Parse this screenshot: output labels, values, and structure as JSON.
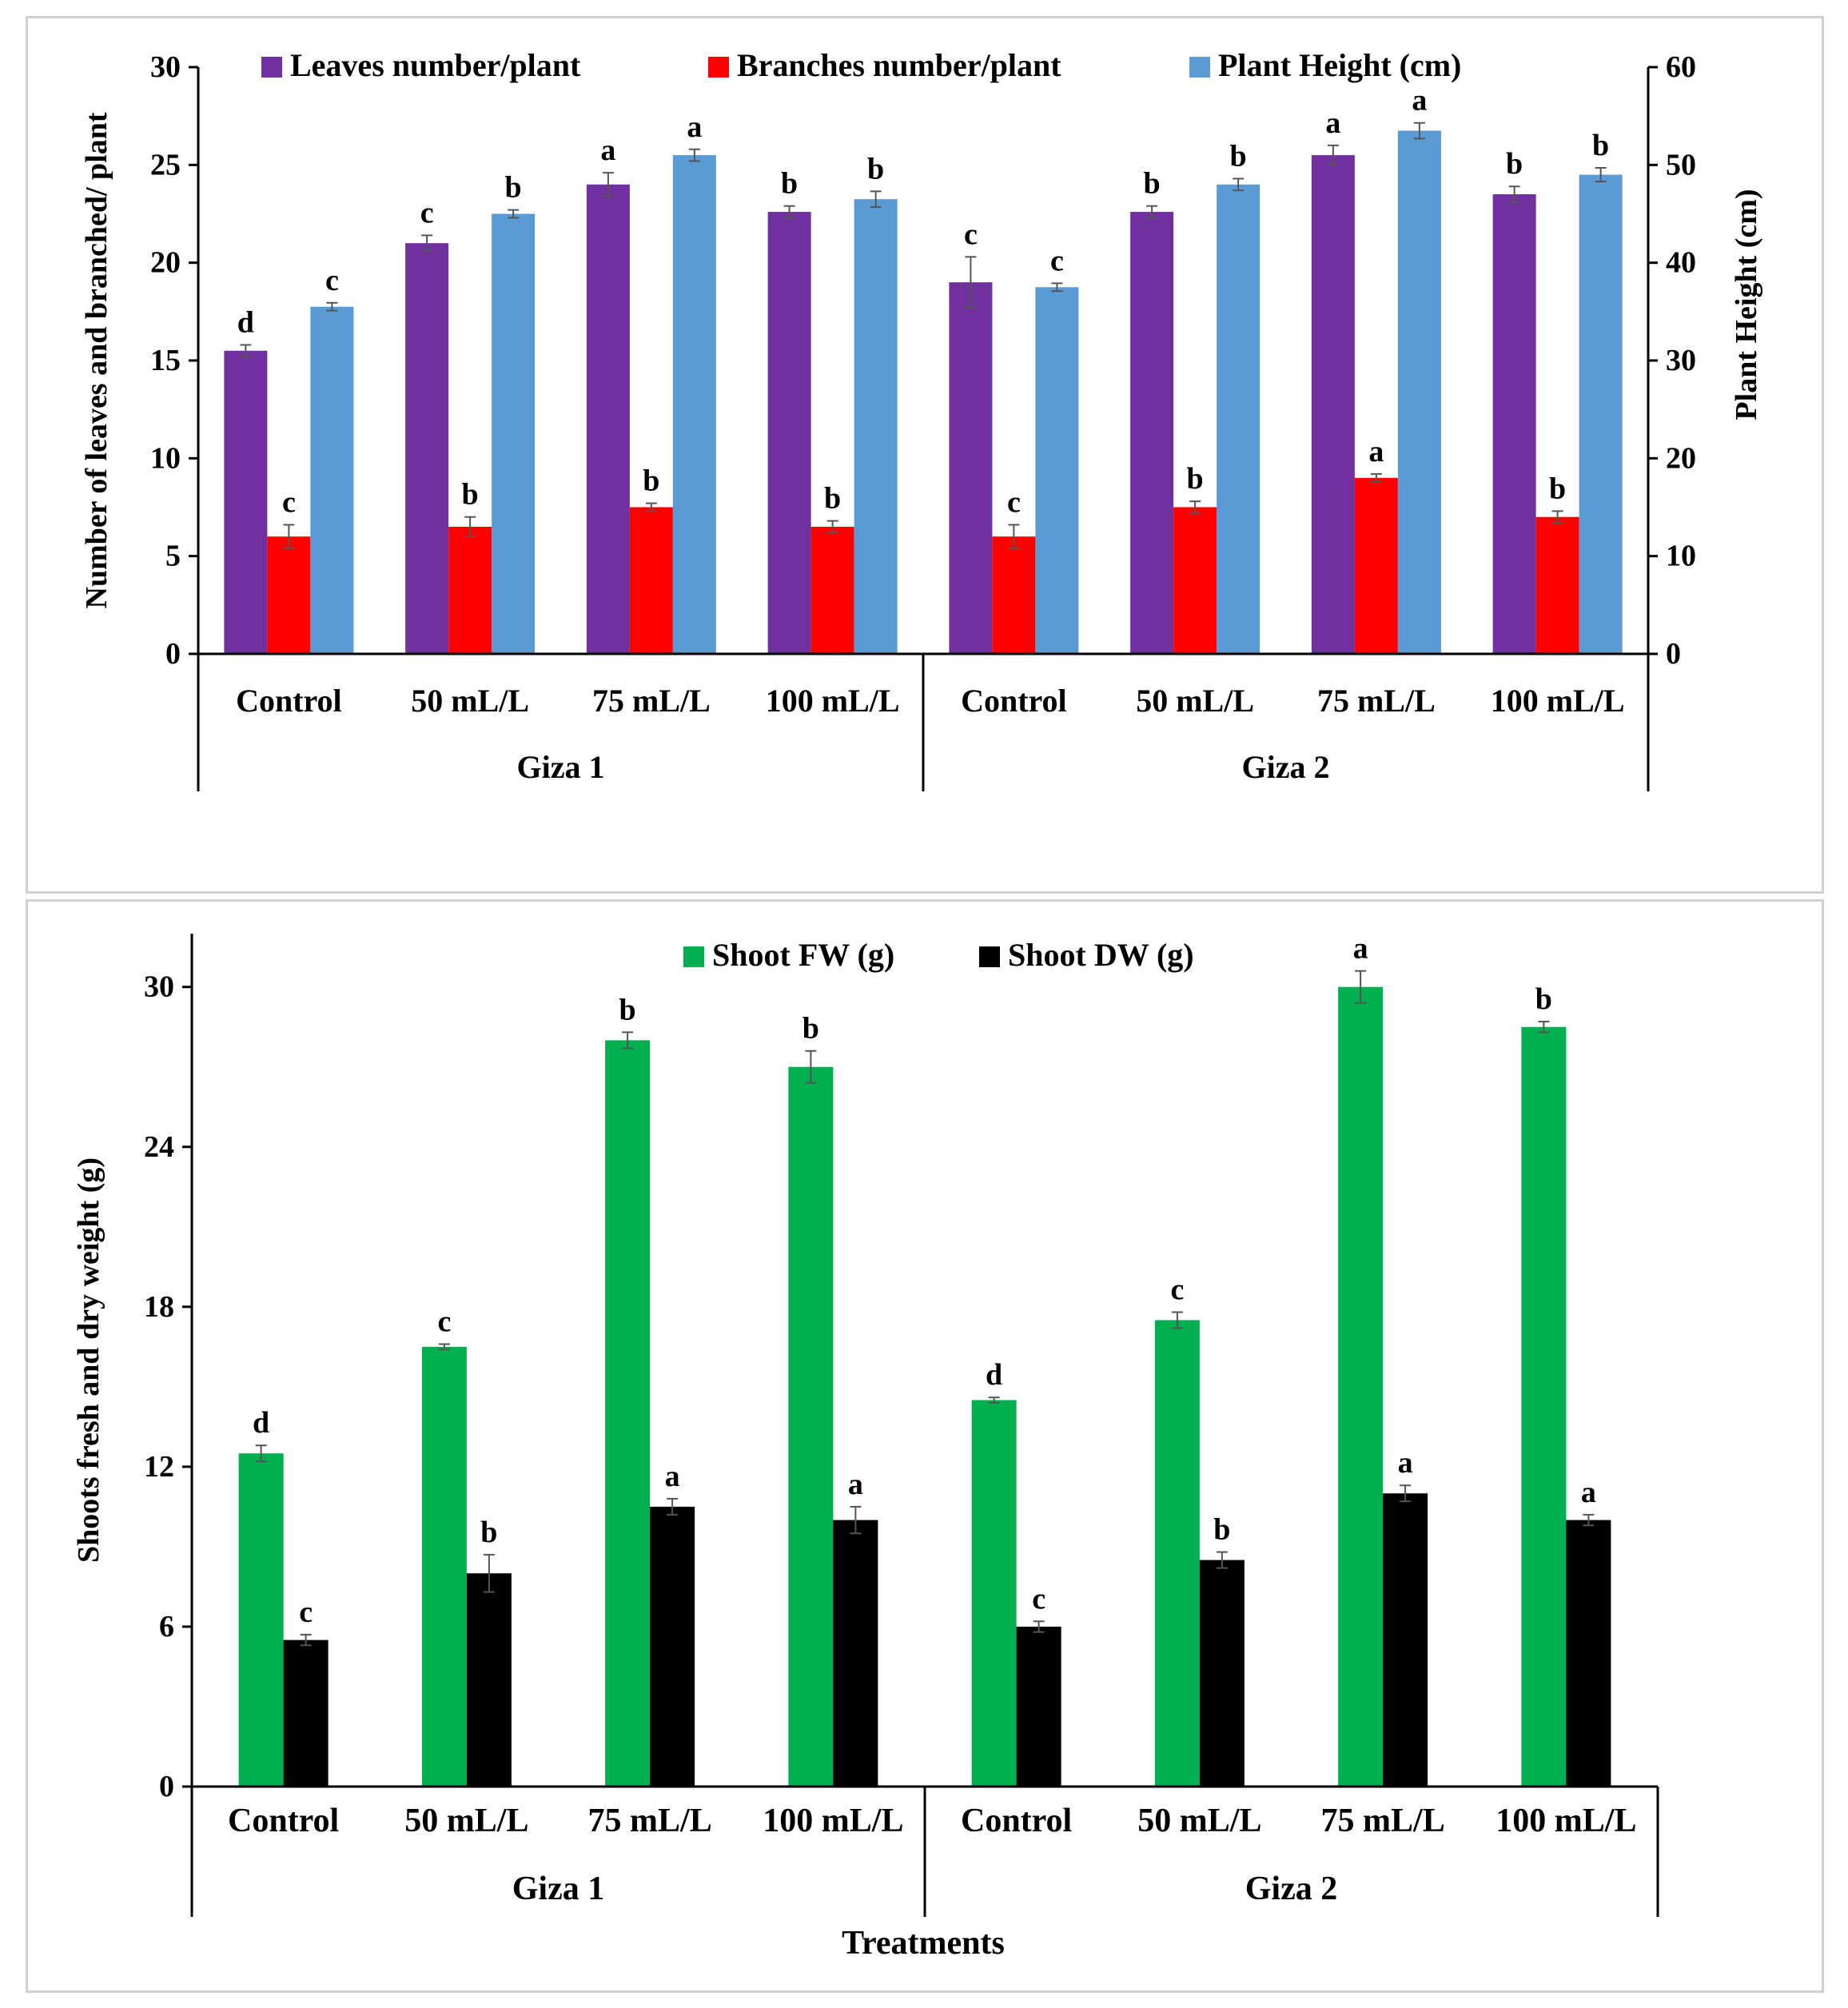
{
  "chart_data": [
    {
      "type": "bar",
      "groups": [
        {
          "name": "Giza 1",
          "categories": [
            "Control",
            "50 mL/L",
            "75 mL/L",
            "100 mL/L"
          ]
        },
        {
          "name": "Giza 2",
          "categories": [
            "Control",
            "50 mL/L",
            "75 mL/L",
            "100 mL/L"
          ]
        }
      ],
      "ylabel": "Number of leaves and branched/ plant",
      "y2label": "Plant Height (cm)",
      "ylim": [
        0,
        30
      ],
      "y2lim": [
        0,
        60
      ],
      "yticks": [
        "0",
        "5",
        "10",
        "15",
        "20",
        "25",
        "30"
      ],
      "y2ticks": [
        "0",
        "10",
        "20",
        "30",
        "40",
        "50",
        "60"
      ],
      "legend_position": "top",
      "series": [
        {
          "name": "Leaves number/plant",
          "color": "#7030a0",
          "axis": "left",
          "values": [
            15.5,
            21,
            24,
            22.6,
            19,
            22.6,
            25.5,
            23.5
          ],
          "errors": [
            0.3,
            0.4,
            0.6,
            0.3,
            1.3,
            0.3,
            0.5,
            0.4
          ],
          "letters": [
            "d",
            "c",
            "a",
            "b",
            "c",
            "b",
            "a",
            "b"
          ]
        },
        {
          "name": "Branches number/plant",
          "color": "#ff0000",
          "axis": "left",
          "values": [
            6,
            6.5,
            7.5,
            6.5,
            6,
            7.5,
            9,
            7
          ],
          "errors": [
            0.6,
            0.5,
            0.2,
            0.3,
            0.6,
            0.3,
            0.2,
            0.3
          ],
          "letters": [
            "c",
            "b",
            "b",
            "b",
            "c",
            "b",
            "a",
            "b"
          ]
        },
        {
          "name": "Plant Height (cm)",
          "color": "#5b9bd5",
          "axis": "right",
          "values": [
            35.5,
            45,
            51,
            46.5,
            37.5,
            48,
            53.5,
            49
          ],
          "errors": [
            0.4,
            0.4,
            0.6,
            0.8,
            0.4,
            0.6,
            0.8,
            0.7
          ],
          "letters": [
            "c",
            "b",
            "a",
            "b",
            "c",
            "b",
            "a",
            "b"
          ]
        }
      ]
    },
    {
      "type": "bar",
      "groups": [
        {
          "name": "Giza 1",
          "categories": [
            "Control",
            "50 mL/L",
            "75 mL/L",
            "100 mL/L"
          ]
        },
        {
          "name": "Giza 2",
          "categories": [
            "Control",
            "50 mL/L",
            "75 mL/L",
            "100 mL/L"
          ]
        }
      ],
      "ylabel": "Shoots fresh and dry weight (g)",
      "xlabel": "Treatments",
      "ylim": [
        0,
        32
      ],
      "yticks": [
        "0",
        "6",
        "12",
        "18",
        "24",
        "30"
      ],
      "legend_position": "top",
      "series": [
        {
          "name": "Shoot FW (g)",
          "color": "#00b050",
          "values": [
            12.5,
            16.5,
            28,
            27,
            14.5,
            17.5,
            30,
            28.5
          ],
          "errors": [
            0.3,
            0.1,
            0.3,
            0.6,
            0.1,
            0.3,
            0.6,
            0.2
          ],
          "letters": [
            "d",
            "c",
            "b",
            "b",
            "d",
            "c",
            "a",
            "b"
          ]
        },
        {
          "name": "Shoot DW (g)",
          "color": "#000000",
          "values": [
            5.5,
            8,
            10.5,
            10,
            6,
            8.5,
            11,
            10
          ],
          "errors": [
            0.2,
            0.7,
            0.3,
            0.5,
            0.2,
            0.3,
            0.3,
            0.2
          ],
          "letters": [
            "c",
            "b",
            "a",
            "a",
            "c",
            "b",
            "a",
            "a"
          ]
        }
      ]
    }
  ]
}
